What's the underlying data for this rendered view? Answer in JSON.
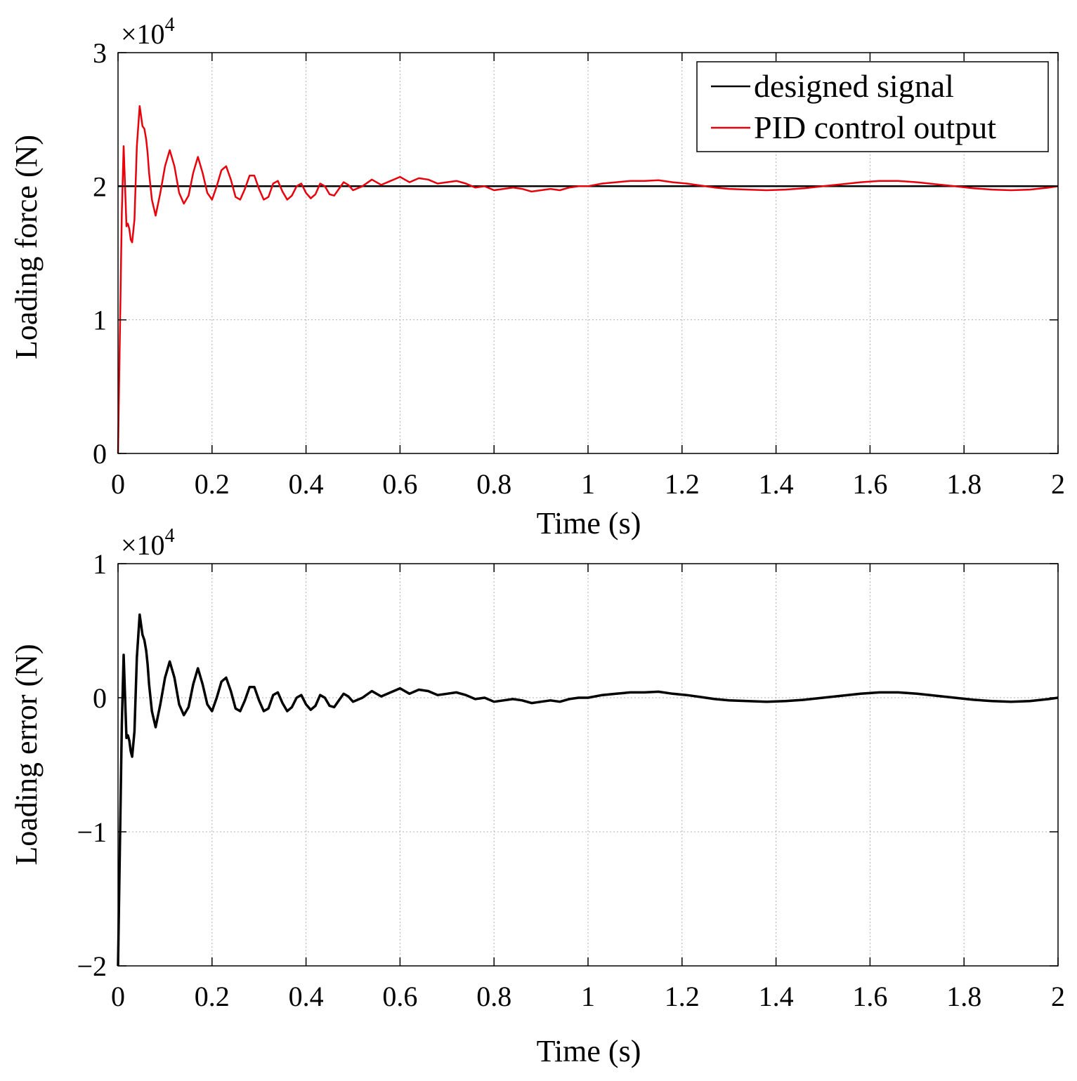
{
  "figure": {
    "background": "#ffffff",
    "grid_color": "#b0b0b0"
  },
  "chart_data": [
    {
      "id": "loading-force",
      "type": "line",
      "title": "",
      "xlabel": "Time (s)",
      "ylabel": "Loading force (N)",
      "xlim": [
        0,
        2
      ],
      "ylim": [
        0,
        3
      ],
      "x_ticks": [
        0,
        0.2,
        0.4,
        0.6,
        0.8,
        1,
        1.2,
        1.4,
        1.6,
        1.8,
        2
      ],
      "x_tick_labels": [
        "0",
        "0.2",
        "0.4",
        "0.6",
        "0.8",
        "1",
        "1.2",
        "1.4",
        "1.6",
        "1.8",
        "2"
      ],
      "y_ticks": [
        0,
        1,
        2,
        3
      ],
      "y_tick_labels": [
        "0",
        "1",
        "2",
        "3"
      ],
      "y_multiplier": {
        "base": "×10",
        "exponent": "4"
      },
      "grid": true,
      "legend": {
        "position": "top-right",
        "entries": [
          "designed signal",
          "PID control output"
        ]
      },
      "series": [
        {
          "name": "designed signal",
          "color": "#000000",
          "x": [
            0,
            2
          ],
          "y": [
            2,
            2
          ]
        },
        {
          "name": "PID control output",
          "color": "#e8000b",
          "x": [
            0,
            0.004,
            0.008,
            0.012,
            0.016,
            0.018,
            0.021,
            0.024,
            0.027,
            0.03,
            0.035,
            0.04,
            0.046,
            0.052,
            0.056,
            0.06,
            0.063,
            0.066,
            0.072,
            0.08,
            0.09,
            0.1,
            0.11,
            0.12,
            0.13,
            0.14,
            0.15,
            0.16,
            0.17,
            0.18,
            0.19,
            0.2,
            0.21,
            0.22,
            0.23,
            0.24,
            0.25,
            0.26,
            0.27,
            0.28,
            0.29,
            0.3,
            0.31,
            0.32,
            0.33,
            0.34,
            0.35,
            0.36,
            0.37,
            0.38,
            0.39,
            0.4,
            0.41,
            0.42,
            0.43,
            0.44,
            0.45,
            0.46,
            0.47,
            0.48,
            0.49,
            0.5,
            0.52,
            0.54,
            0.56,
            0.58,
            0.6,
            0.62,
            0.64,
            0.66,
            0.68,
            0.7,
            0.72,
            0.74,
            0.76,
            0.78,
            0.8,
            0.82,
            0.84,
            0.86,
            0.88,
            0.9,
            0.92,
            0.94,
            0.96,
            0.98,
            1.0,
            1.03,
            1.06,
            1.09,
            1.12,
            1.15,
            1.18,
            1.21,
            1.24,
            1.27,
            1.3,
            1.34,
            1.38,
            1.42,
            1.46,
            1.5,
            1.54,
            1.58,
            1.62,
            1.66,
            1.7,
            1.74,
            1.78,
            1.82,
            1.86,
            1.9,
            1.94,
            1.98,
            2.0
          ],
          "y": [
            0,
            0.9,
            1.8,
            2.3,
            1.9,
            1.7,
            1.72,
            1.68,
            1.6,
            1.58,
            1.75,
            2.3,
            2.6,
            2.45,
            2.43,
            2.35,
            2.25,
            2.1,
            1.9,
            1.78,
            1.95,
            2.15,
            2.27,
            2.15,
            1.95,
            1.87,
            1.93,
            2.1,
            2.22,
            2.1,
            1.95,
            1.9,
            2.0,
            2.12,
            2.15,
            2.05,
            1.92,
            1.9,
            1.98,
            2.08,
            2.08,
            1.98,
            1.9,
            1.92,
            2.02,
            2.04,
            1.96,
            1.9,
            1.93,
            2.0,
            2.02,
            1.95,
            1.91,
            1.94,
            2.02,
            2.0,
            1.94,
            1.93,
            1.98,
            2.03,
            2.01,
            1.97,
            2.0,
            2.05,
            2.01,
            2.04,
            2.07,
            2.03,
            2.06,
            2.05,
            2.02,
            2.03,
            2.04,
            2.02,
            1.99,
            2.0,
            1.97,
            1.98,
            1.99,
            1.98,
            1.96,
            1.97,
            1.98,
            1.97,
            1.99,
            2.0,
            2.0,
            2.02,
            2.03,
            2.04,
            2.04,
            2.045,
            2.03,
            2.02,
            2.005,
            1.99,
            1.98,
            1.975,
            1.97,
            1.975,
            1.985,
            2.0,
            2.015,
            2.03,
            2.04,
            2.04,
            2.03,
            2.015,
            2.0,
            1.985,
            1.975,
            1.97,
            1.975,
            1.99,
            2.0
          ]
        }
      ]
    },
    {
      "id": "loading-error",
      "type": "line",
      "title": "",
      "xlabel": "Time (s)",
      "ylabel": "Loading error (N)",
      "xlim": [
        0,
        2
      ],
      "ylim": [
        -2,
        1
      ],
      "x_ticks": [
        0,
        0.2,
        0.4,
        0.6,
        0.8,
        1,
        1.2,
        1.4,
        1.6,
        1.8,
        2
      ],
      "x_tick_labels": [
        "0",
        "0.2",
        "0.4",
        "0.6",
        "0.8",
        "1",
        "1.2",
        "1.4",
        "1.6",
        "1.8",
        "2"
      ],
      "y_ticks": [
        -2,
        -1,
        0,
        1
      ],
      "y_tick_labels": [
        "−2",
        "−1",
        "0",
        "1"
      ],
      "y_multiplier": {
        "base": "×10",
        "exponent": "4"
      },
      "grid": true,
      "series": [
        {
          "name": "loading error",
          "color": "#000000",
          "x": [
            0,
            0.004,
            0.008,
            0.012,
            0.016,
            0.018,
            0.021,
            0.024,
            0.027,
            0.03,
            0.035,
            0.04,
            0.046,
            0.052,
            0.056,
            0.06,
            0.063,
            0.066,
            0.072,
            0.08,
            0.09,
            0.1,
            0.11,
            0.12,
            0.13,
            0.14,
            0.15,
            0.16,
            0.17,
            0.18,
            0.19,
            0.2,
            0.21,
            0.22,
            0.23,
            0.24,
            0.25,
            0.26,
            0.27,
            0.28,
            0.29,
            0.3,
            0.31,
            0.32,
            0.33,
            0.34,
            0.35,
            0.36,
            0.37,
            0.38,
            0.39,
            0.4,
            0.41,
            0.42,
            0.43,
            0.44,
            0.45,
            0.46,
            0.47,
            0.48,
            0.49,
            0.5,
            0.52,
            0.54,
            0.56,
            0.58,
            0.6,
            0.62,
            0.64,
            0.66,
            0.68,
            0.7,
            0.72,
            0.74,
            0.76,
            0.78,
            0.8,
            0.82,
            0.84,
            0.86,
            0.88,
            0.9,
            0.92,
            0.94,
            0.96,
            0.98,
            1.0,
            1.03,
            1.06,
            1.09,
            1.12,
            1.15,
            1.18,
            1.21,
            1.24,
            1.27,
            1.3,
            1.34,
            1.38,
            1.42,
            1.46,
            1.5,
            1.54,
            1.58,
            1.62,
            1.66,
            1.7,
            1.74,
            1.78,
            1.82,
            1.86,
            1.9,
            1.94,
            1.98,
            2.0
          ],
          "y": [
            -2,
            -1.1,
            -0.2,
            0.32,
            -0.1,
            -0.3,
            -0.28,
            -0.32,
            -0.4,
            -0.44,
            -0.25,
            0.3,
            0.62,
            0.47,
            0.43,
            0.35,
            0.25,
            0.1,
            -0.1,
            -0.22,
            -0.05,
            0.15,
            0.27,
            0.15,
            -0.05,
            -0.13,
            -0.07,
            0.1,
            0.22,
            0.1,
            -0.05,
            -0.1,
            0.0,
            0.12,
            0.15,
            0.05,
            -0.08,
            -0.1,
            -0.02,
            0.08,
            0.08,
            -0.02,
            -0.1,
            -0.08,
            0.02,
            0.04,
            -0.04,
            -0.1,
            -0.07,
            0.0,
            0.02,
            -0.05,
            -0.09,
            -0.06,
            0.02,
            0.0,
            -0.06,
            -0.07,
            -0.02,
            0.03,
            0.01,
            -0.03,
            0.0,
            0.05,
            0.01,
            0.04,
            0.07,
            0.03,
            0.06,
            0.05,
            0.02,
            0.03,
            0.04,
            0.02,
            -0.01,
            0.0,
            -0.03,
            -0.02,
            -0.01,
            -0.02,
            -0.04,
            -0.03,
            -0.02,
            -0.03,
            -0.01,
            0.0,
            0.0,
            0.02,
            0.03,
            0.04,
            0.04,
            0.045,
            0.03,
            0.02,
            0.005,
            -0.01,
            -0.02,
            -0.025,
            -0.03,
            -0.025,
            -0.015,
            0.0,
            0.015,
            0.03,
            0.04,
            0.04,
            0.03,
            0.015,
            0.0,
            -0.015,
            -0.025,
            -0.03,
            -0.025,
            -0.01,
            0.0
          ]
        }
      ]
    }
  ]
}
